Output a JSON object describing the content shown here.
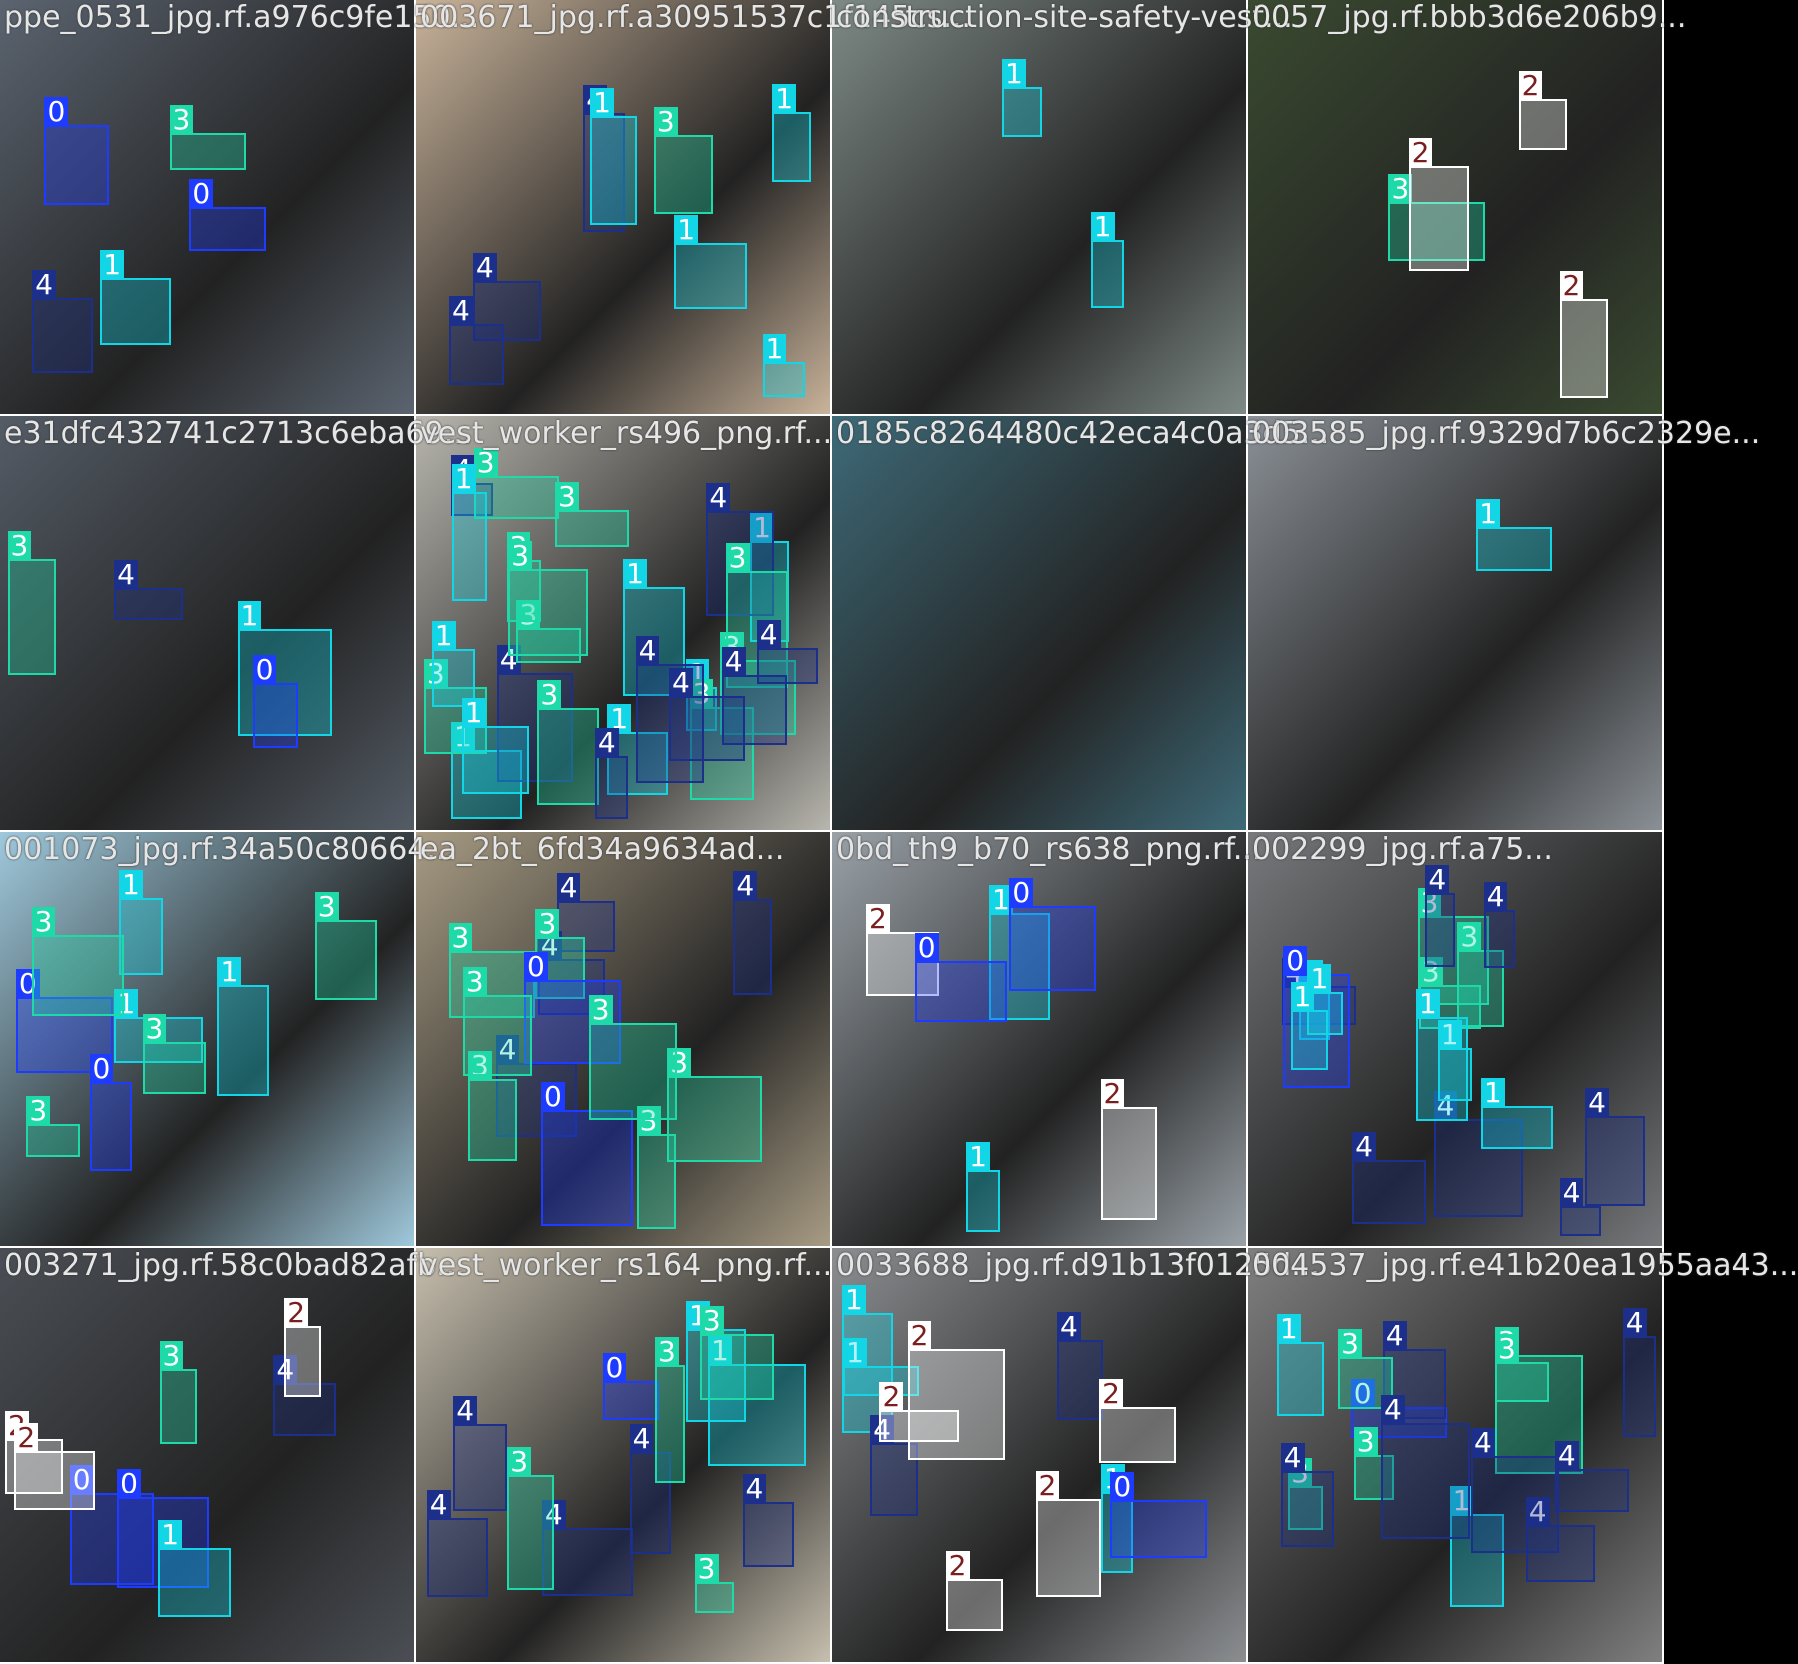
{
  "image": {
    "description_kind": "mosaic-of-detection-training-batch",
    "class_colors": {
      "0": "#1e3cff",
      "1": "#12d6e6",
      "2": "#ffffff",
      "3": "#1ed9a8",
      "4": "#1c2f8a"
    },
    "class_label_colors": {
      "2": "#7a1f1f"
    }
  },
  "tiles": [
    {
      "title": "ppe_0531_jpg.rf.a976c9fe150...",
      "bg": "#5b6470",
      "labels": [
        "0",
        "4",
        "1",
        "3",
        "0"
      ]
    },
    {
      "title": "003671_jpg.rf.a30951537c1f145cs...",
      "bg": "#c9b39a",
      "labels": [
        "1",
        "1",
        "3",
        "4",
        "4",
        "4",
        "1",
        "1"
      ]
    },
    {
      "title": "construction-site-safety-vest...",
      "bg": "#7e8a86",
      "labels": [
        "1",
        "1"
      ]
    },
    {
      "title": "0057_jpg.rf.bbb3d6e206b9...",
      "bg": "#3a4a30",
      "labels": [
        "3",
        "2",
        "2",
        "2"
      ]
    },
    {
      "title": "e31dfc432741c2713c6eba69...",
      "bg": "#545c66",
      "labels": [
        "1",
        "4",
        "0",
        "3"
      ]
    },
    {
      "title": "vest_worker_rs496_png.rf...",
      "bg": "#b8b6ae",
      "labels": [
        "1",
        "1",
        "1",
        "1",
        "4",
        "4",
        "4",
        "3",
        "3",
        "3",
        "3",
        "3",
        "3",
        "3",
        "1",
        "1",
        "1",
        "1",
        "3",
        "3",
        "3",
        "4",
        "4",
        "4",
        "4",
        "4"
      ]
    },
    {
      "title": "0185c8264480c42eca4c0a3d5...",
      "bg": "#3e6a78",
      "labels": []
    },
    {
      "title": "003585_jpg.rf.9329d7b6c2329e...",
      "bg": "#8a9096",
      "labels": [
        "1"
      ]
    },
    {
      "title": "001073_jpg.rf.34a50c80664...",
      "bg": "#9fc9dc",
      "labels": [
        "1",
        "0",
        "0",
        "1",
        "1",
        "3",
        "3",
        "3",
        "3"
      ]
    },
    {
      "title": "ea_2bt_6fd34a9634ad...",
      "bg": "#a89c84",
      "labels": [
        "4",
        "4",
        "4",
        "4",
        "0",
        "3",
        "3",
        "3",
        "3",
        "3",
        "0",
        "3",
        "3"
      ]
    },
    {
      "title": "0bd_th9_b70_rs638_png.rf...",
      "bg": "#9aa2a8",
      "labels": [
        "2",
        "2",
        "1",
        "0",
        "1",
        "0"
      ]
    },
    {
      "title": "002299_jpg.rf.a75...",
      "bg": "#77797c",
      "labels": [
        "3",
        "3",
        "3",
        "4",
        "4",
        "4",
        "4",
        "4",
        "4",
        "4",
        "1",
        "1",
        "1",
        "0",
        "1",
        "1",
        "1"
      ]
    },
    {
      "title": "003271_jpg.rf.58c0bad82afb...",
      "bg": "#4b4f55",
      "labels": [
        "0",
        "4",
        "1",
        "3",
        "0",
        "2",
        "2",
        "2"
      ]
    },
    {
      "title": "vest_worker_rs164_png.rf...",
      "bg": "#c7bfae",
      "labels": [
        "4",
        "1",
        "1",
        "4",
        "4",
        "4",
        "4",
        "0",
        "3",
        "3",
        "3",
        "3"
      ]
    },
    {
      "title": "0033688_jpg.rf.d91b13f0125d...",
      "bg": "#8c8f92",
      "labels": [
        "1",
        "1",
        "4",
        "4",
        "1",
        "0",
        "2",
        "2",
        "2",
        "2",
        "2"
      ]
    },
    {
      "title": "004537_jpg.rf.e41b20ea1955aa43...",
      "bg": "#808080",
      "labels": [
        "0",
        "3",
        "1",
        "4",
        "4",
        "4",
        "4",
        "3",
        "3",
        "3",
        "3",
        "4",
        "4",
        "4",
        "1"
      ]
    }
  ]
}
